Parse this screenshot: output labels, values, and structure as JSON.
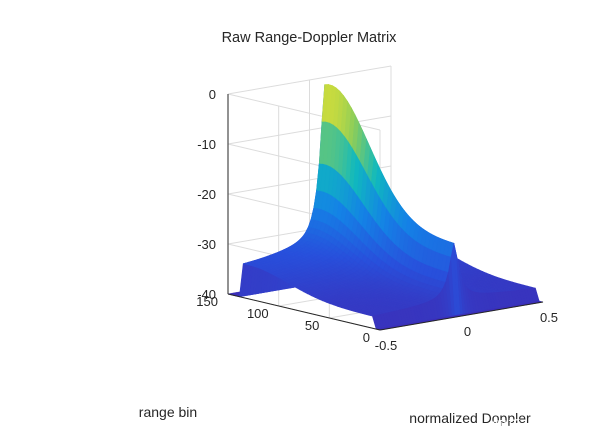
{
  "chart_data": {
    "type": "surface",
    "title": "Raw Range-Doppler Matrix",
    "xlabel": "normalized Doppler",
    "ylabel": "range bin",
    "zlabel": "",
    "xlim": [
      -0.5,
      0.5
    ],
    "ylim": [
      0,
      150
    ],
    "zlim": [
      -40,
      0
    ],
    "x_ticks": [
      "-0.5",
      "0",
      "0.5"
    ],
    "y_ticks": [
      "0",
      "50",
      "100",
      "150"
    ],
    "z_ticks": [
      "0",
      "-10",
      "-20",
      "-30",
      "-40"
    ],
    "colormap": "parula",
    "peak": {
      "doppler": 0.0,
      "range_bin": 130,
      "value_db": 0
    },
    "floor_db": -40,
    "ridge_profile": [
      {
        "doppler": -0.5,
        "value_db": -34
      },
      {
        "doppler": -0.3,
        "value_db": -32
      },
      {
        "doppler": -0.15,
        "value_db": -28
      },
      {
        "doppler": -0.05,
        "value_db": -20
      },
      {
        "doppler": 0.0,
        "value_db": 0
      },
      {
        "doppler": 0.05,
        "value_db": -20
      },
      {
        "doppler": 0.15,
        "value_db": -28
      },
      {
        "doppler": 0.3,
        "value_db": -32
      },
      {
        "doppler": 0.5,
        "value_db": -34
      }
    ],
    "grid": true
  },
  "watermark": "知乎 @路阳",
  "colors": {
    "floor": "#3b2fb8",
    "low": "#3a6fe0",
    "mid": "#15b9b8",
    "high": "#f2e631",
    "axis": "#262626",
    "grid": "#dcdcdc"
  }
}
